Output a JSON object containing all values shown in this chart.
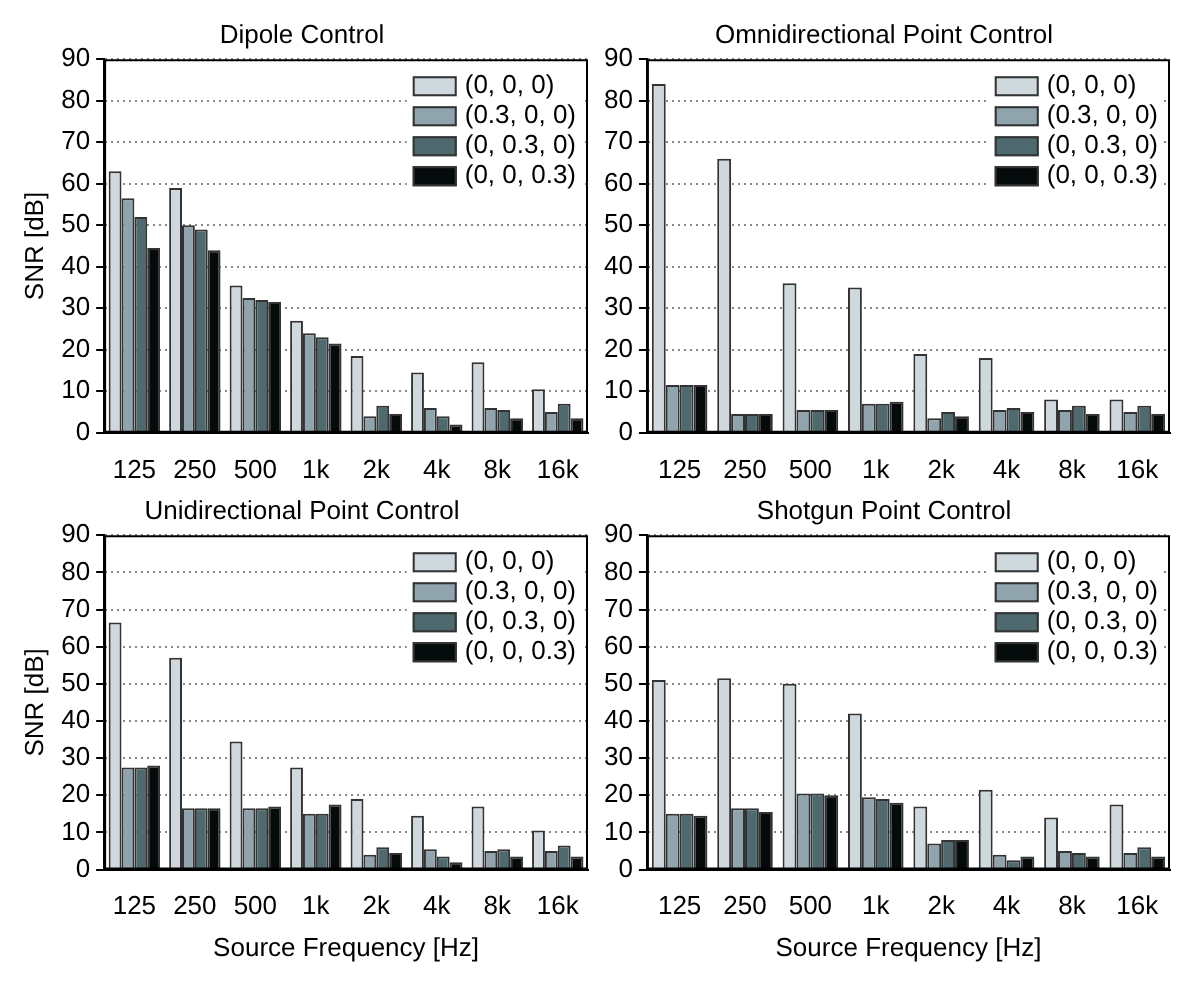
{
  "chart_data": [
    {
      "type": "bar",
      "title": "Dipole Control",
      "ylabel": "SNR [dB]",
      "categories": [
        "125",
        "250",
        "500",
        "1k",
        "2k",
        "4k",
        "8k",
        "16k"
      ],
      "ylim": [
        0,
        90
      ],
      "yticks": [
        0,
        10,
        20,
        30,
        40,
        50,
        60,
        70,
        80,
        90
      ],
      "grid": "y",
      "legend": "top right",
      "series": [
        {
          "name": "(0, 0, 0)",
          "color": "#cfd8dc",
          "values": [
            63,
            59,
            35.5,
            27,
            18.5,
            14.5,
            17,
            10.5
          ]
        },
        {
          "name": "(0.3, 0, 0)",
          "color": "#90a4ae",
          "values": [
            56.5,
            50,
            32.5,
            24,
            4,
            6,
            6,
            5
          ]
        },
        {
          "name": "(0, 0.3, 0)",
          "color": "#4e6a6e",
          "values": [
            52,
            49,
            32,
            23,
            6.5,
            4,
            5.5,
            7
          ]
        },
        {
          "name": "(0, 0, 0.3)",
          "color": "#050a0a",
          "values": [
            44.5,
            44,
            31.5,
            21.5,
            4.5,
            2,
            3.5,
            3.5
          ]
        }
      ]
    },
    {
      "type": "bar",
      "title": "Omnidirectional Point Control",
      "categories": [
        "125",
        "250",
        "500",
        "1k",
        "2k",
        "4k",
        "8k",
        "16k"
      ],
      "ylim": [
        0,
        90
      ],
      "yticks": [
        0,
        10,
        20,
        30,
        40,
        50,
        60,
        70,
        80,
        90
      ],
      "grid": "y",
      "legend": "top right",
      "series": [
        {
          "name": "(0, 0, 0)",
          "color": "#cfd8dc",
          "values": [
            84,
            66,
            36,
            35,
            19,
            18,
            8,
            8
          ]
        },
        {
          "name": "(0.3, 0, 0)",
          "color": "#90a4ae",
          "values": [
            11.5,
            4.5,
            5.5,
            7,
            3.5,
            5.5,
            5.5,
            5
          ]
        },
        {
          "name": "(0, 0.3, 0)",
          "color": "#4e6a6e",
          "values": [
            11.5,
            4.5,
            5.5,
            7,
            5,
            6,
            6.5,
            6.5
          ]
        },
        {
          "name": "(0, 0, 0.3)",
          "color": "#050a0a",
          "values": [
            11.5,
            4.5,
            5.5,
            7.5,
            4,
            5,
            4.5,
            4.5
          ]
        }
      ]
    },
    {
      "type": "bar",
      "title": "Unidirectional Point Control",
      "xlabel": "Source Frequency [Hz]",
      "ylabel": "SNR [dB]",
      "categories": [
        "125",
        "250",
        "500",
        "1k",
        "2k",
        "4k",
        "8k",
        "16k"
      ],
      "ylim": [
        0,
        90
      ],
      "yticks": [
        0,
        10,
        20,
        30,
        40,
        50,
        60,
        70,
        80,
        90
      ],
      "grid": "y",
      "legend": "top right",
      "series": [
        {
          "name": "(0, 0, 0)",
          "color": "#cfd8dc",
          "values": [
            66.5,
            57,
            34.5,
            27.5,
            19,
            14.5,
            17,
            10.5
          ]
        },
        {
          "name": "(0.3, 0, 0)",
          "color": "#90a4ae",
          "values": [
            27.5,
            16.5,
            16.5,
            15,
            4,
            5.5,
            5,
            5
          ]
        },
        {
          "name": "(0, 0.3, 0)",
          "color": "#4e6a6e",
          "values": [
            27.5,
            16.5,
            16.5,
            15,
            6,
            3.5,
            5.5,
            6.5
          ]
        },
        {
          "name": "(0, 0, 0.3)",
          "color": "#050a0a",
          "values": [
            28,
            16.5,
            17,
            17.5,
            4.5,
            2,
            3.5,
            3.5
          ]
        }
      ]
    },
    {
      "type": "bar",
      "title": "Shotgun Point Control",
      "xlabel": "Source Frequency [Hz]",
      "categories": [
        "125",
        "250",
        "500",
        "1k",
        "2k",
        "4k",
        "8k",
        "16k"
      ],
      "ylim": [
        0,
        90
      ],
      "yticks": [
        0,
        10,
        20,
        30,
        40,
        50,
        60,
        70,
        80,
        90
      ],
      "grid": "y",
      "legend": "top right",
      "series": [
        {
          "name": "(0, 0, 0)",
          "color": "#cfd8dc",
          "values": [
            51,
            51.5,
            50,
            42,
            17,
            21.5,
            14,
            17.5
          ]
        },
        {
          "name": "(0.3, 0, 0)",
          "color": "#90a4ae",
          "values": [
            15,
            16.5,
            20.5,
            19.5,
            7,
            4,
            5,
            4.5
          ]
        },
        {
          "name": "(0, 0.3, 0)",
          "color": "#4e6a6e",
          "values": [
            15,
            16.5,
            20.5,
            19,
            8,
            2.5,
            4.5,
            6
          ]
        },
        {
          "name": "(0, 0, 0.3)",
          "color": "#050a0a",
          "values": [
            14.5,
            15.5,
            20,
            18,
            8,
            3.5,
            3.5,
            3.5
          ]
        }
      ]
    }
  ]
}
